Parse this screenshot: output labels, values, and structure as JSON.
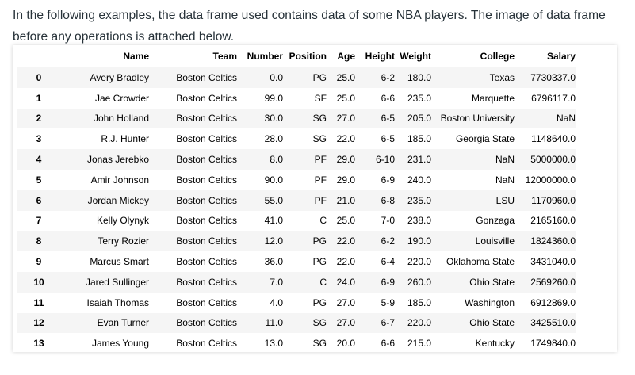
{
  "intro": "In the following examples, the data frame used contains data of some NBA players. The image of data frame before any operations is attached below.",
  "table": {
    "headers": [
      "",
      "Name",
      "Team",
      "Number",
      "Position",
      "Age",
      "Height",
      "Weight",
      "College",
      "Salary"
    ],
    "rows": [
      [
        "0",
        "Avery Bradley",
        "Boston Celtics",
        "0.0",
        "PG",
        "25.0",
        "6-2",
        "180.0",
        "Texas",
        "7730337.0"
      ],
      [
        "1",
        "Jae Crowder",
        "Boston Celtics",
        "99.0",
        "SF",
        "25.0",
        "6-6",
        "235.0",
        "Marquette",
        "6796117.0"
      ],
      [
        "2",
        "John Holland",
        "Boston Celtics",
        "30.0",
        "SG",
        "27.0",
        "6-5",
        "205.0",
        "Boston University",
        "NaN"
      ],
      [
        "3",
        "R.J. Hunter",
        "Boston Celtics",
        "28.0",
        "SG",
        "22.0",
        "6-5",
        "185.0",
        "Georgia State",
        "1148640.0"
      ],
      [
        "4",
        "Jonas Jerebko",
        "Boston Celtics",
        "8.0",
        "PF",
        "29.0",
        "6-10",
        "231.0",
        "NaN",
        "5000000.0"
      ],
      [
        "5",
        "Amir Johnson",
        "Boston Celtics",
        "90.0",
        "PF",
        "29.0",
        "6-9",
        "240.0",
        "NaN",
        "12000000.0"
      ],
      [
        "6",
        "Jordan Mickey",
        "Boston Celtics",
        "55.0",
        "PF",
        "21.0",
        "6-8",
        "235.0",
        "LSU",
        "1170960.0"
      ],
      [
        "7",
        "Kelly Olynyk",
        "Boston Celtics",
        "41.0",
        "C",
        "25.0",
        "7-0",
        "238.0",
        "Gonzaga",
        "2165160.0"
      ],
      [
        "8",
        "Terry Rozier",
        "Boston Celtics",
        "12.0",
        "PG",
        "22.0",
        "6-2",
        "190.0",
        "Louisville",
        "1824360.0"
      ],
      [
        "9",
        "Marcus Smart",
        "Boston Celtics",
        "36.0",
        "PG",
        "22.0",
        "6-4",
        "220.0",
        "Oklahoma State",
        "3431040.0"
      ],
      [
        "10",
        "Jared Sullinger",
        "Boston Celtics",
        "7.0",
        "C",
        "24.0",
        "6-9",
        "260.0",
        "Ohio State",
        "2569260.0"
      ],
      [
        "11",
        "Isaiah Thomas",
        "Boston Celtics",
        "4.0",
        "PG",
        "27.0",
        "5-9",
        "185.0",
        "Washington",
        "6912869.0"
      ],
      [
        "12",
        "Evan Turner",
        "Boston Celtics",
        "11.0",
        "SG",
        "27.0",
        "6-7",
        "220.0",
        "Ohio State",
        "3425510.0"
      ],
      [
        "13",
        "James Young",
        "Boston Celtics",
        "13.0",
        "SG",
        "20.0",
        "6-6",
        "215.0",
        "Kentucky",
        "1749840.0"
      ]
    ]
  }
}
